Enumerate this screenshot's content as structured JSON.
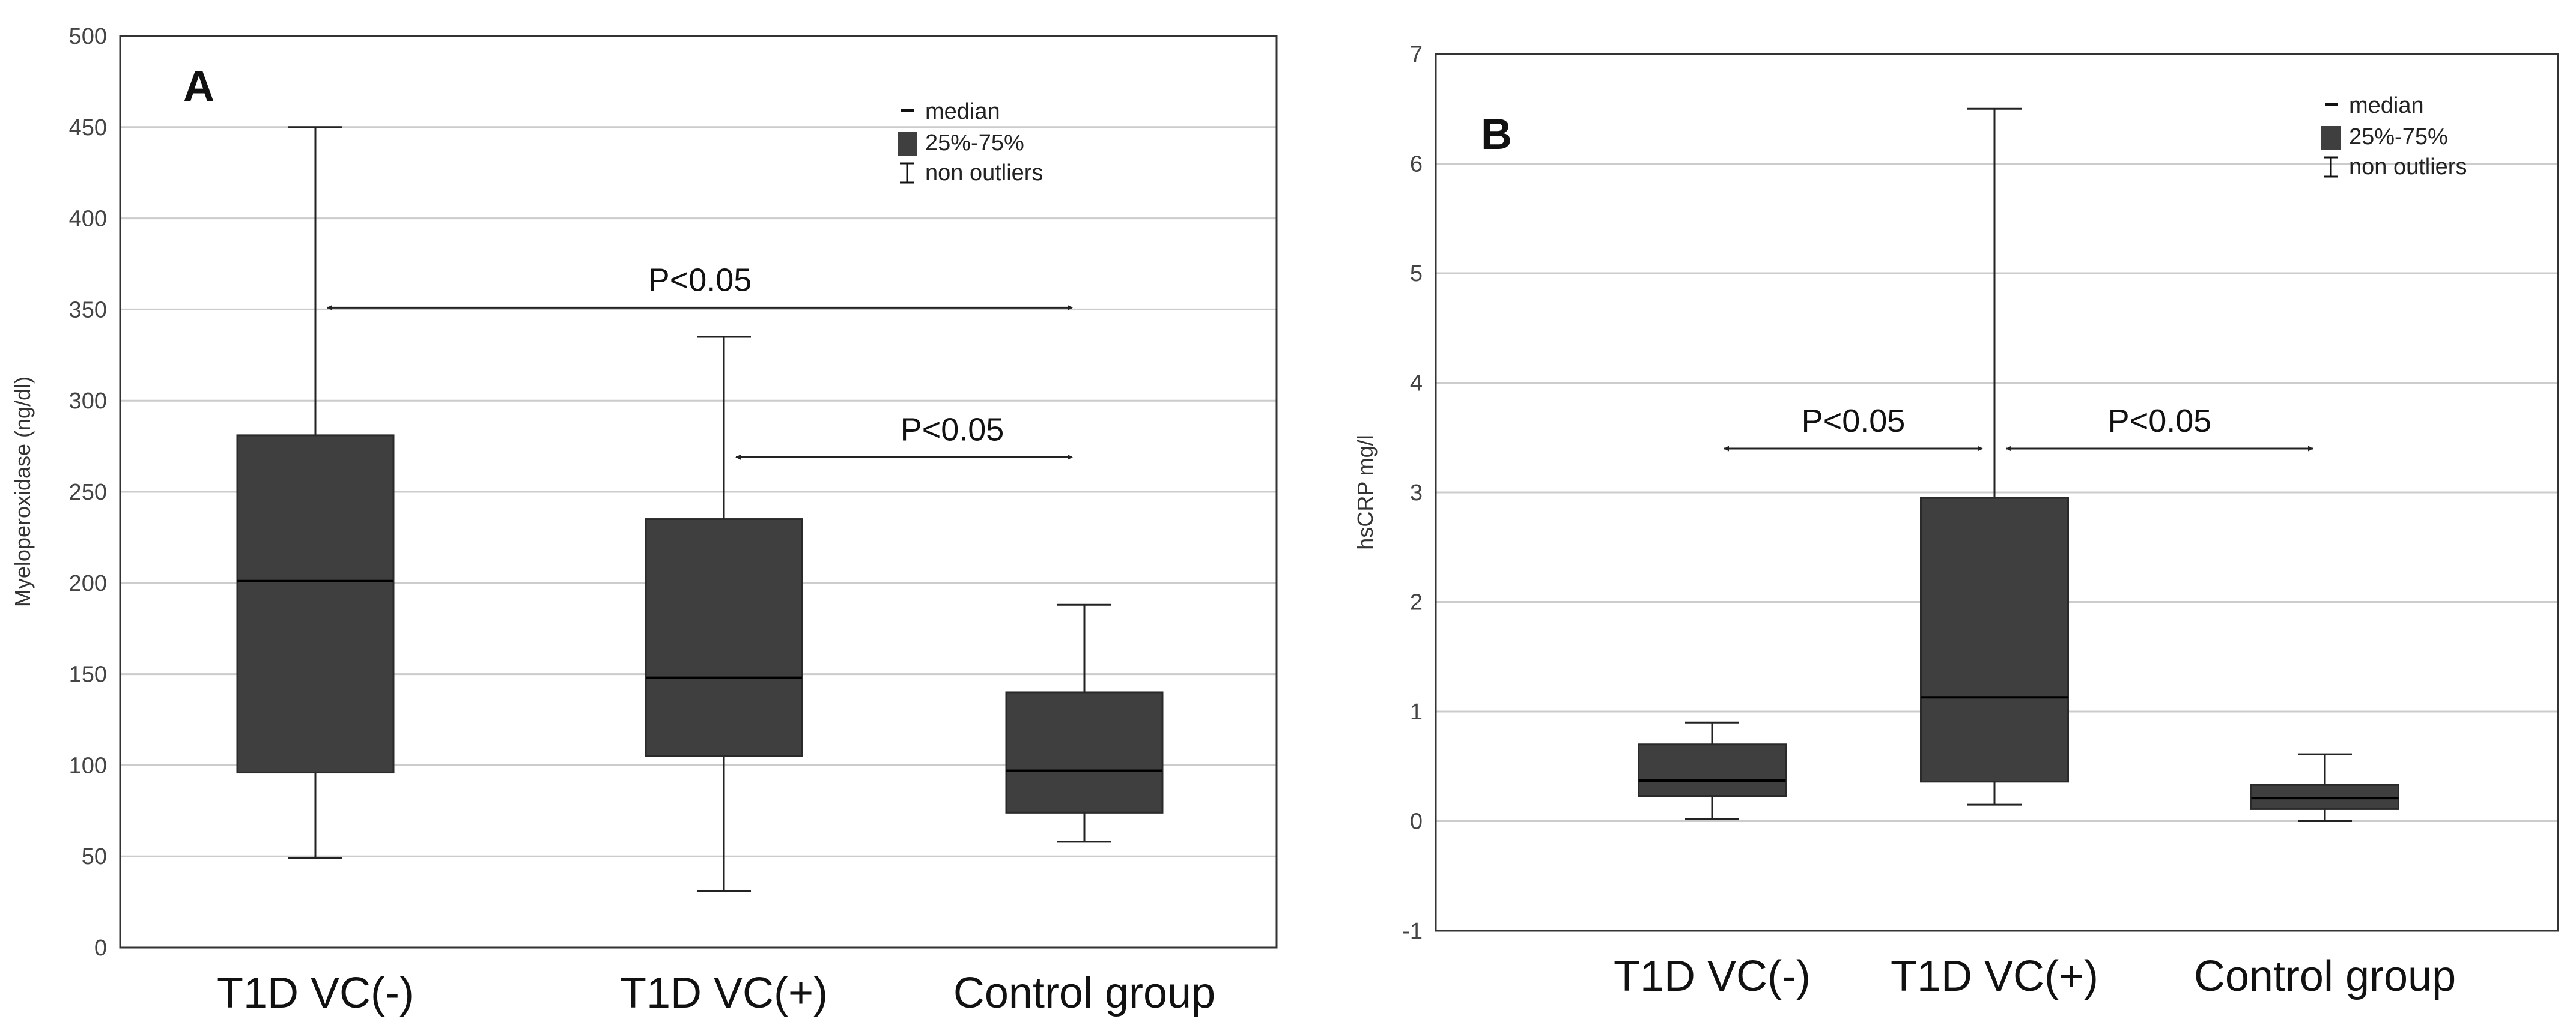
{
  "colors": {
    "box_fill": "#3f3f3f",
    "grid": "#cccccc",
    "frame": "#333333",
    "line": "#222222"
  },
  "legend": {
    "median": "median",
    "iqr": "25%-75%",
    "range": "non outliers"
  },
  "chart_data": [
    {
      "type": "box",
      "panel": "A",
      "ylabel": "Myeloperoxidase (ng/dl)",
      "ylim": [
        0,
        500
      ],
      "yticks": [
        "0",
        "50",
        "100",
        "150",
        "200",
        "250",
        "300",
        "350",
        "400",
        "450",
        "500"
      ],
      "grid": true,
      "categories": [
        "T1D VC(-)",
        "T1D VC(+)",
        "Control group"
      ],
      "boxes": [
        {
          "min": 49,
          "q1": 96,
          "median": 201,
          "q3": 281,
          "max": 450
        },
        {
          "min": 31,
          "q1": 105,
          "median": 148,
          "q3": 235,
          "max": 335
        },
        {
          "min": 58,
          "q1": 74,
          "median": 97,
          "q3": 140,
          "max": 188
        }
      ],
      "comparisons": [
        {
          "label": "P<0.05",
          "from": 0,
          "to": 2,
          "y": 351
        },
        {
          "label": "P<0.05",
          "from": 1,
          "to": 2,
          "y": 269
        }
      ]
    },
    {
      "type": "box",
      "panel": "B",
      "ylabel": "hsCRP mg/l",
      "ylim": [
        -1,
        7
      ],
      "yticks": [
        "-1",
        "0",
        "1",
        "2",
        "3",
        "4",
        "5",
        "6",
        "7"
      ],
      "grid": true,
      "categories": [
        "T1D VC(-)",
        "T1D VC(+)",
        "Control group"
      ],
      "boxes": [
        {
          "min": 0.02,
          "q1": 0.23,
          "median": 0.37,
          "q3": 0.7,
          "max": 0.9
        },
        {
          "min": 0.15,
          "q1": 0.36,
          "median": 1.13,
          "q3": 2.95,
          "max": 6.5
        },
        {
          "min": 0.0,
          "q1": 0.11,
          "median": 0.21,
          "q3": 0.33,
          "max": 0.61
        }
      ],
      "comparisons": [
        {
          "label": "P<0.05",
          "from": 0,
          "to": 1,
          "y": 3.4
        },
        {
          "label": "P<0.05",
          "from": 1,
          "to": 2,
          "y": 3.4
        }
      ]
    }
  ]
}
